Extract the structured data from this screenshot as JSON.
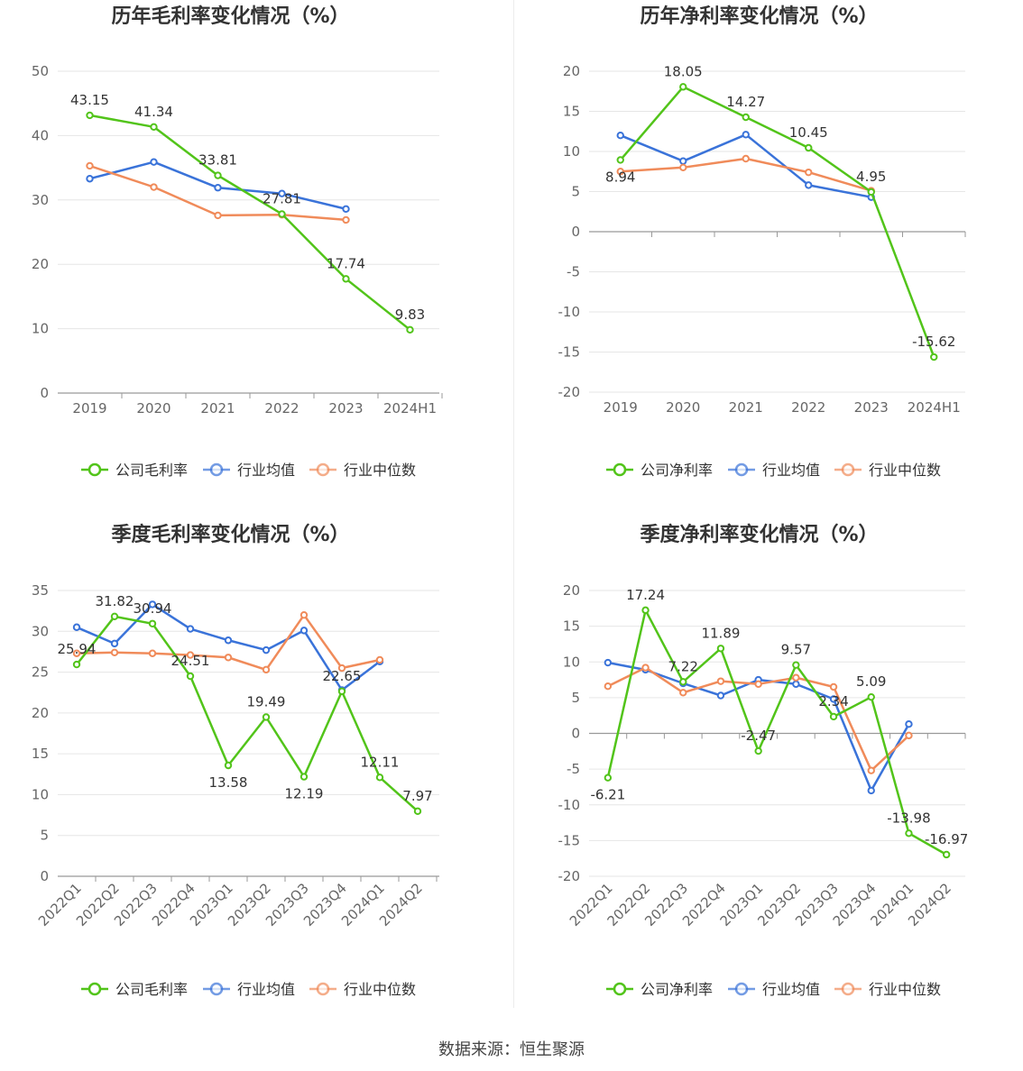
{
  "footer": "数据来源：恒生聚源",
  "legend_colors": {
    "company": "#52c41a",
    "avg": "#3a73d9",
    "median": "#f08b5a"
  },
  "chart_data": [
    {
      "type": "line",
      "title": "历年毛利率变化情况（%）",
      "categories": [
        "2019",
        "2020",
        "2021",
        "2022",
        "2023",
        "2024H1"
      ],
      "ylim": [
        0,
        50
      ],
      "yticks": [
        0,
        10,
        20,
        30,
        40,
        50
      ],
      "rotate_x": false,
      "legend_position": "bottom",
      "series": [
        {
          "name": "公司毛利率",
          "color": "#52c41a",
          "values": [
            43.15,
            41.34,
            33.81,
            27.81,
            17.74,
            9.83
          ],
          "labels": [
            "43.15",
            "41.34",
            "33.81",
            "27.81",
            "17.74",
            "9.83"
          ]
        },
        {
          "name": "行业均值",
          "color": "#3a73d9",
          "values": [
            33.3,
            35.9,
            31.9,
            31.0,
            28.6,
            null
          ]
        },
        {
          "name": "行业中位数",
          "color": "#f08b5a",
          "values": [
            35.3,
            32.0,
            27.6,
            27.7,
            26.9,
            null
          ]
        }
      ]
    },
    {
      "type": "line",
      "title": "历年净利率变化情况（%）",
      "categories": [
        "2019",
        "2020",
        "2021",
        "2022",
        "2023",
        "2024H1"
      ],
      "ylim": [
        -20,
        20
      ],
      "yticks": [
        -20,
        -15,
        -10,
        -5,
        0,
        5,
        10,
        15,
        20
      ],
      "rotate_x": false,
      "legend_position": "bottom",
      "series": [
        {
          "name": "公司净利率",
          "color": "#52c41a",
          "values": [
            8.94,
            18.05,
            14.27,
            10.45,
            4.95,
            -15.62
          ],
          "labels": [
            "8.94",
            "18.05",
            "14.27",
            "10.45",
            "4.95",
            "-15.62"
          ]
        },
        {
          "name": "行业均值",
          "color": "#3a73d9",
          "values": [
            12.0,
            8.8,
            12.1,
            5.8,
            4.3,
            null
          ]
        },
        {
          "name": "行业中位数",
          "color": "#f08b5a",
          "values": [
            7.5,
            8.0,
            9.1,
            7.4,
            5.1,
            null
          ]
        }
      ]
    },
    {
      "type": "line",
      "title": "季度毛利率变化情况（%）",
      "categories": [
        "2022Q1",
        "2022Q2",
        "2022Q3",
        "2022Q4",
        "2023Q1",
        "2023Q2",
        "2023Q3",
        "2023Q4",
        "2024Q1",
        "2024Q2"
      ],
      "ylim": [
        0,
        35
      ],
      "yticks": [
        0,
        5,
        10,
        15,
        20,
        25,
        30,
        35
      ],
      "rotate_x": true,
      "legend_position": "bottom",
      "series": [
        {
          "name": "公司毛利率",
          "color": "#52c41a",
          "values": [
            25.94,
            31.82,
            30.94,
            24.51,
            13.58,
            19.49,
            12.19,
            22.65,
            12.11,
            7.97
          ],
          "labels": [
            "25.94",
            "31.82",
            "30.94",
            "24.51",
            "13.58",
            "19.49",
            "12.19",
            "22.65",
            "12.11",
            "7.97"
          ]
        },
        {
          "name": "行业均值",
          "color": "#3a73d9",
          "values": [
            30.5,
            28.5,
            33.3,
            30.3,
            28.9,
            27.7,
            30.1,
            22.8,
            26.3,
            null
          ]
        },
        {
          "name": "行业中位数",
          "color": "#f08b5a",
          "values": [
            27.3,
            27.4,
            27.3,
            27.1,
            26.8,
            25.3,
            32.0,
            25.5,
            26.5,
            null
          ]
        }
      ]
    },
    {
      "type": "line",
      "title": "季度净利率变化情况（%）",
      "categories": [
        "2022Q1",
        "2022Q2",
        "2022Q3",
        "2022Q4",
        "2023Q1",
        "2023Q2",
        "2023Q3",
        "2023Q4",
        "2024Q1",
        "2024Q2"
      ],
      "ylim": [
        -20,
        20
      ],
      "yticks": [
        -20,
        -15,
        -10,
        -5,
        0,
        5,
        10,
        15,
        20
      ],
      "rotate_x": true,
      "legend_position": "bottom",
      "series": [
        {
          "name": "公司净利率",
          "color": "#52c41a",
          "values": [
            -6.21,
            17.24,
            7.22,
            11.89,
            -2.47,
            9.57,
            2.34,
            5.09,
            -13.98,
            -16.97
          ],
          "labels": [
            "-6.21",
            "17.24",
            "7.22",
            "11.89",
            "-2.47",
            "9.57",
            "2.34",
            "5.09",
            "-13.98",
            "-16.97"
          ]
        },
        {
          "name": "行业均值",
          "color": "#3a73d9",
          "values": [
            9.9,
            8.9,
            7.0,
            5.3,
            7.5,
            6.9,
            4.8,
            -8.0,
            1.3,
            null
          ]
        },
        {
          "name": "行业中位数",
          "color": "#f08b5a",
          "values": [
            6.6,
            9.2,
            5.7,
            7.3,
            6.9,
            7.8,
            6.5,
            -5.2,
            -0.3,
            null
          ]
        }
      ]
    }
  ]
}
